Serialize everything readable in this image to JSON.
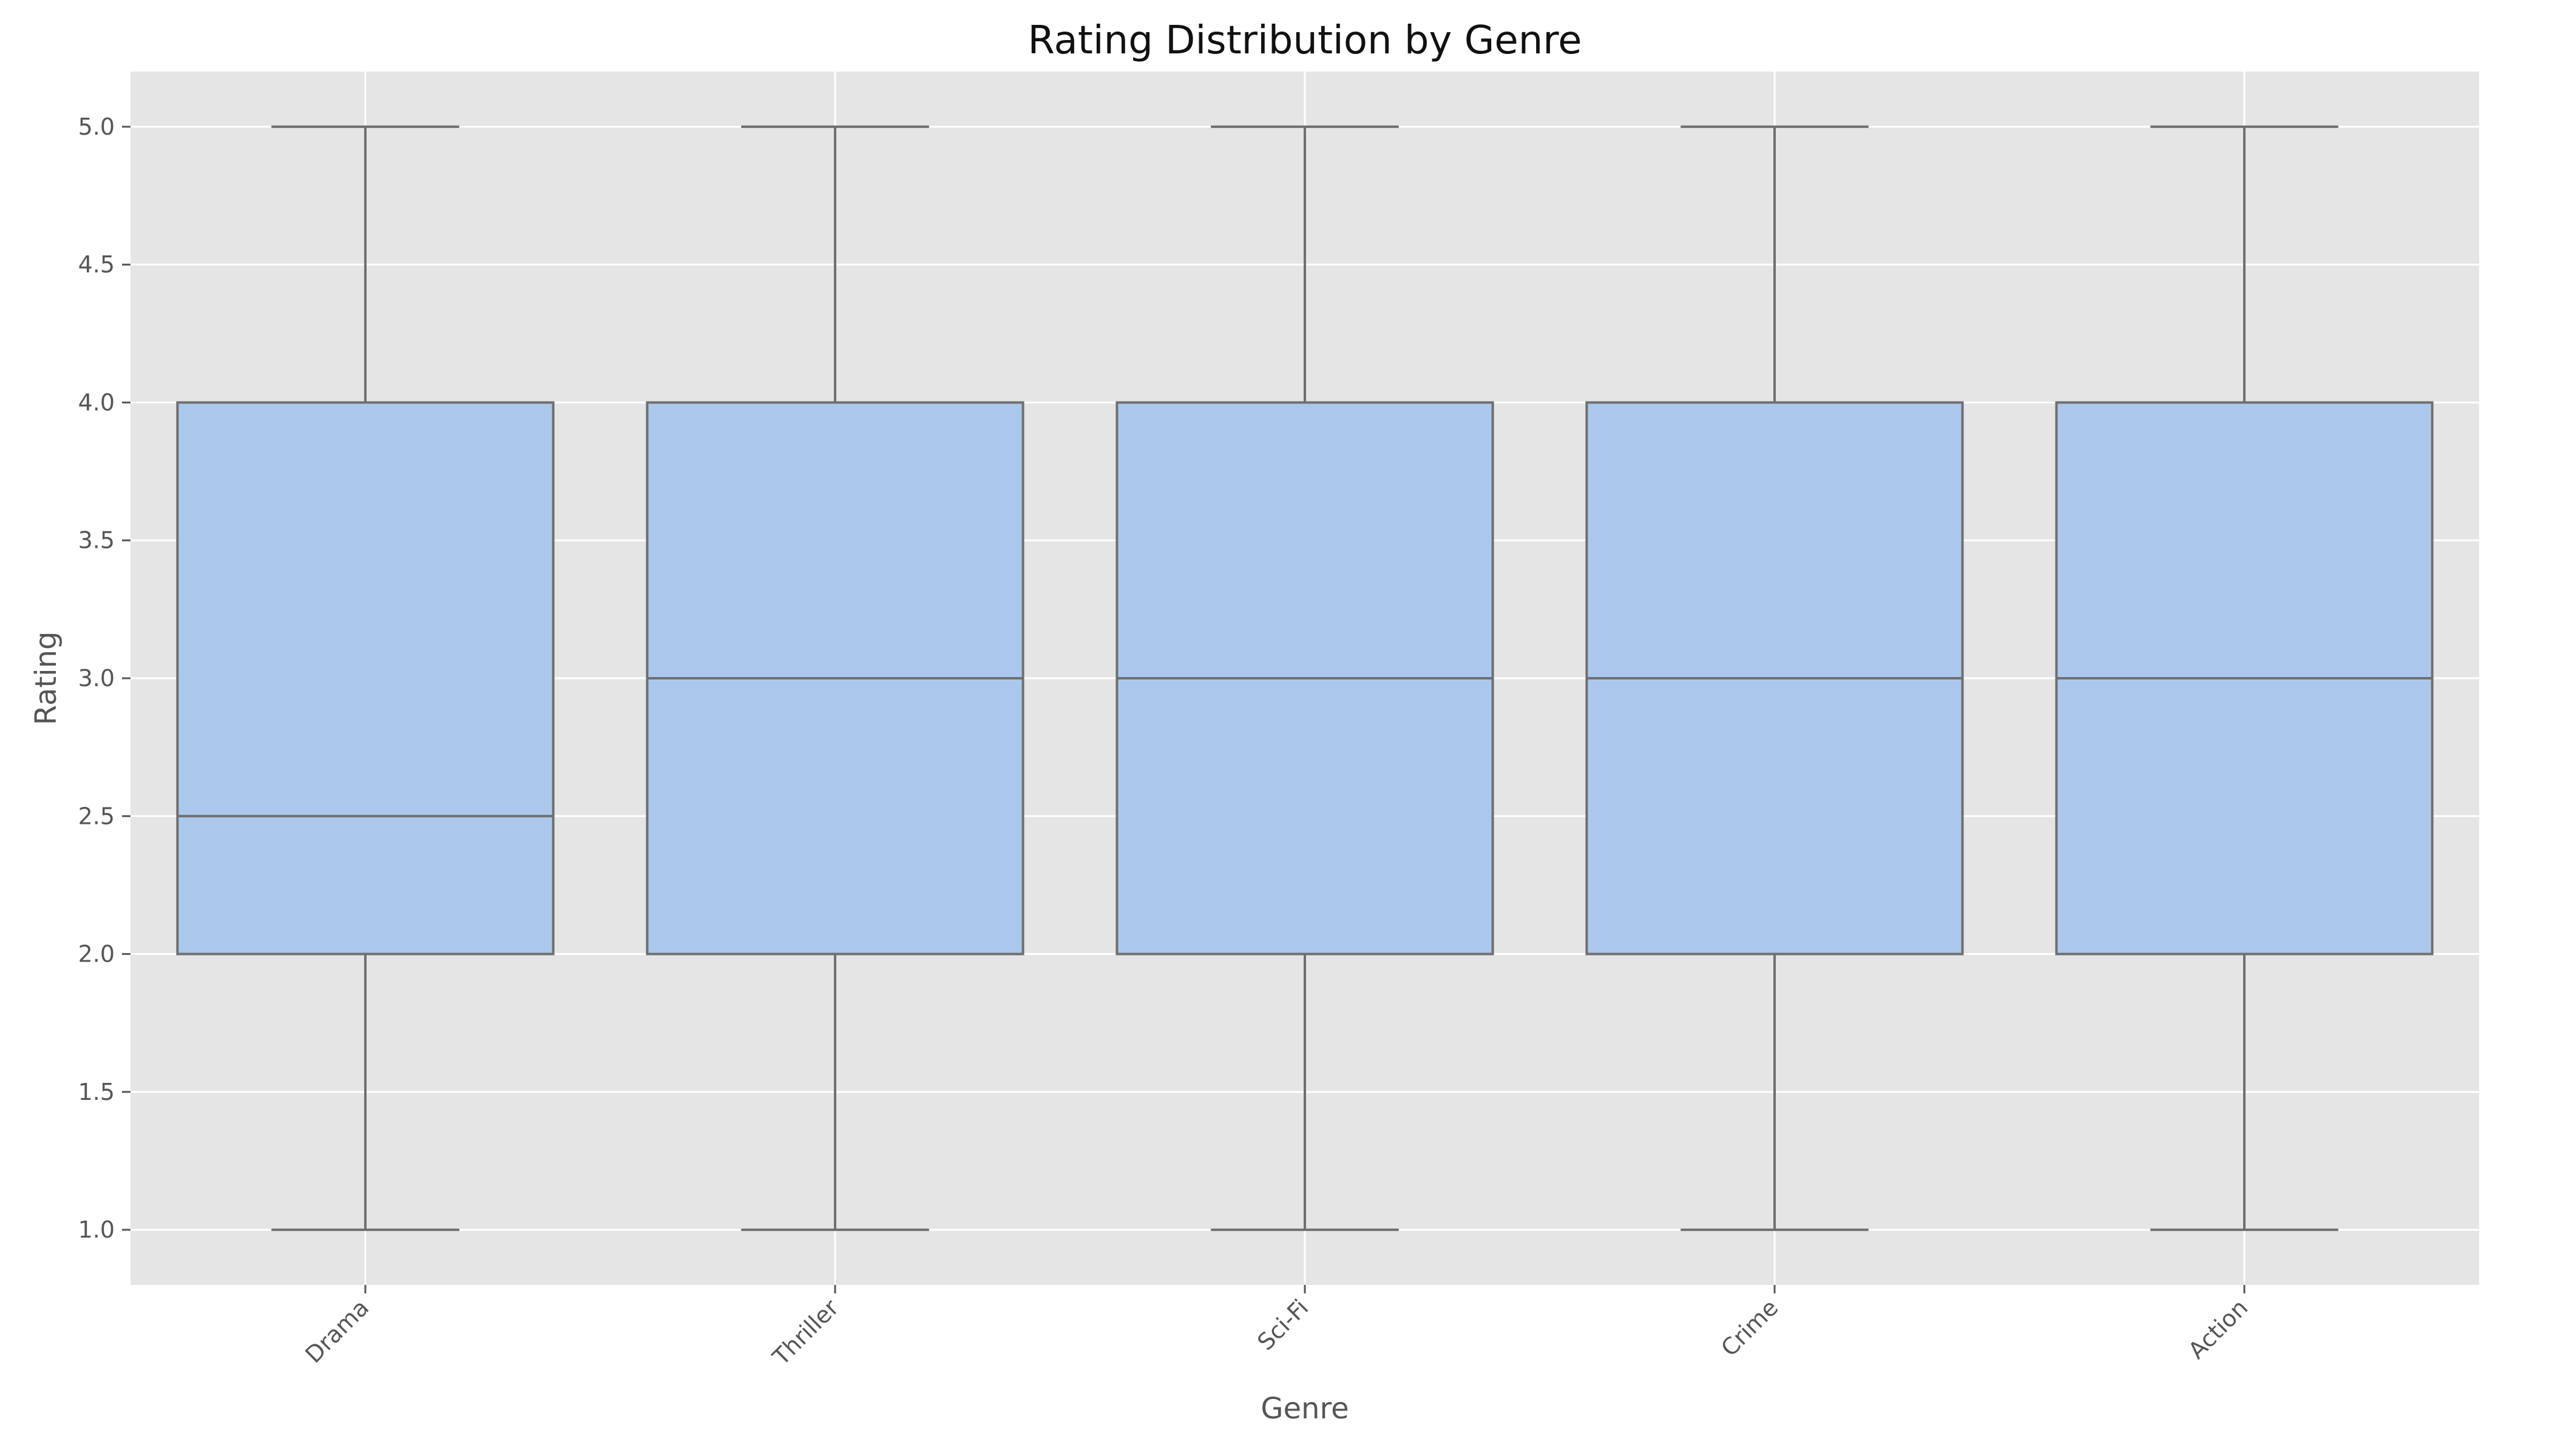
{
  "chart_data": {
    "type": "box",
    "title": "Rating Distribution by Genre",
    "xlabel": "Genre",
    "ylabel": "Rating",
    "categories": [
      "Drama",
      "Thriller",
      "Sci-Fi",
      "Crime",
      "Action"
    ],
    "boxes": [
      {
        "category": "Drama",
        "min": 1.0,
        "q1": 2.0,
        "median": 2.5,
        "q3": 4.0,
        "max": 5.0
      },
      {
        "category": "Thriller",
        "min": 1.0,
        "q1": 2.0,
        "median": 3.0,
        "q3": 4.0,
        "max": 5.0
      },
      {
        "category": "Sci-Fi",
        "min": 1.0,
        "q1": 2.0,
        "median": 3.0,
        "q3": 4.0,
        "max": 5.0
      },
      {
        "category": "Crime",
        "min": 1.0,
        "q1": 2.0,
        "median": 3.0,
        "q3": 4.0,
        "max": 5.0
      },
      {
        "category": "Action",
        "min": 1.0,
        "q1": 2.0,
        "median": 3.0,
        "q3": 4.0,
        "max": 5.0
      }
    ],
    "ylim": [
      0.8,
      5.2
    ],
    "yticks": [
      1.0,
      1.5,
      2.0,
      2.5,
      3.0,
      3.5,
      4.0,
      4.5,
      5.0
    ],
    "ytick_labels": [
      "1.0",
      "1.5",
      "2.0",
      "2.5",
      "3.0",
      "3.5",
      "4.0",
      "4.5",
      "5.0"
    ],
    "grid": true,
    "x_tick_rotation_deg": 45,
    "colors": {
      "plot_background": "#e5e5e5",
      "grid": "#ffffff",
      "box_fill": "#abc8ec",
      "box_edge": "#6f6f6f",
      "text": "#555555",
      "title": "#111111"
    }
  }
}
